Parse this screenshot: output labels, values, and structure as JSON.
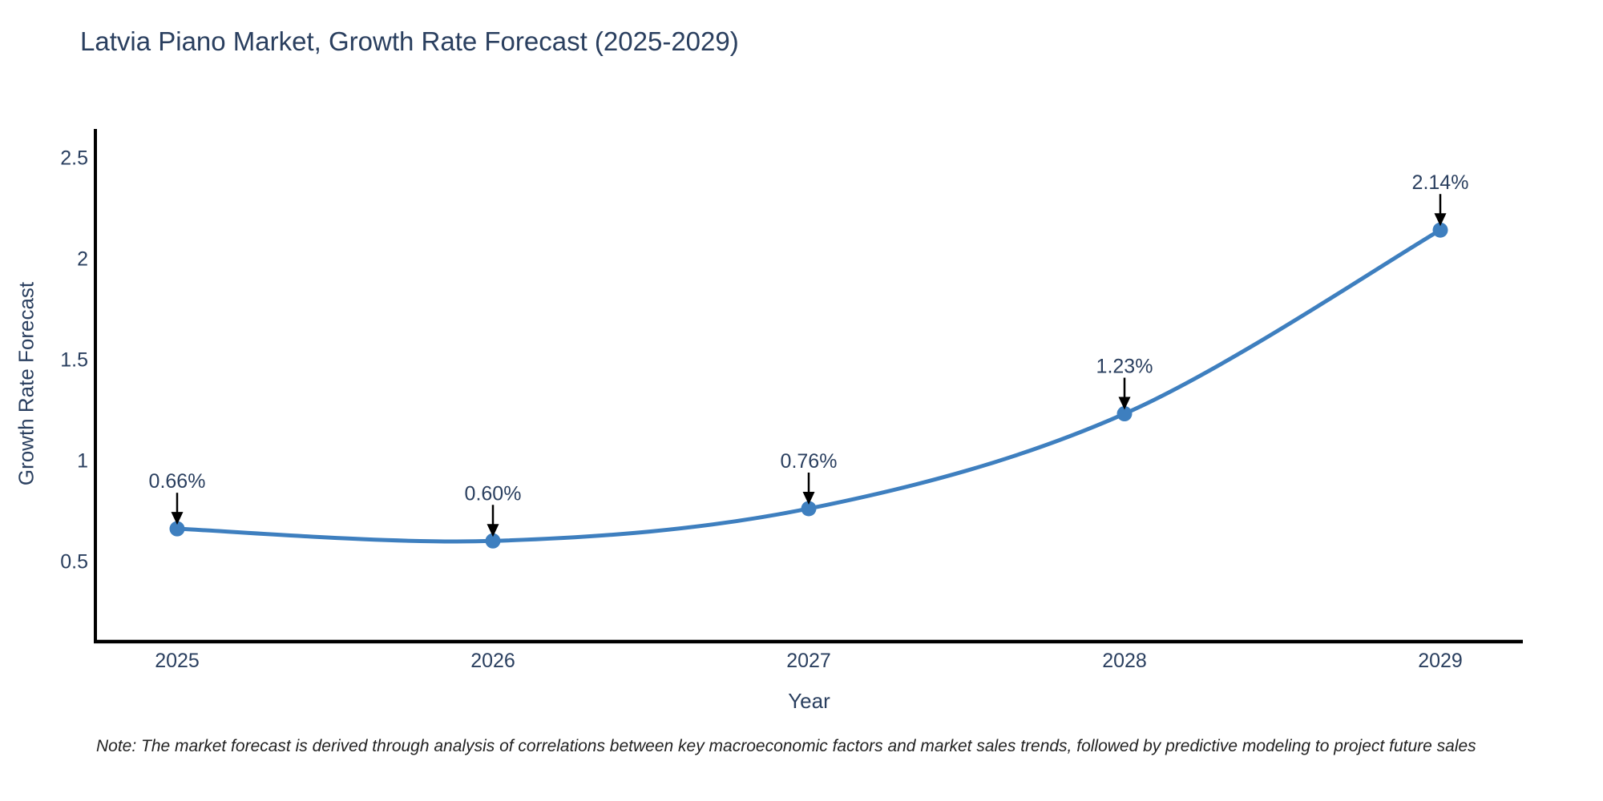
{
  "page": {
    "note": "Note: The market forecast is derived through analysis of correlations between key macroeconomic factors and market sales trends, followed by predictive modeling to project future sales"
  },
  "chart_data": {
    "type": "line",
    "title": "Latvia Piano Market, Growth Rate Forecast (2025-2029)",
    "xlabel": "Year",
    "ylabel": "Growth Rate Forecast",
    "categories": [
      "2025",
      "2026",
      "2027",
      "2028",
      "2029"
    ],
    "series": [
      {
        "name": "Growth Rate Forecast",
        "values": [
          0.66,
          0.6,
          0.76,
          1.23,
          2.14
        ]
      }
    ],
    "point_labels": [
      "0.66%",
      "0.60%",
      "0.76%",
      "1.23%",
      "2.14%"
    ],
    "ytick_labels": [
      "0.5",
      "1",
      "1.5",
      "2",
      "2.5"
    ],
    "ytick_values": [
      0.5,
      1,
      1.5,
      2,
      2.5
    ],
    "ylim": [
      0.1,
      2.64
    ],
    "line_shape": "spline",
    "marker": "circle",
    "annotations": "black-arrow-down-to-each-point",
    "grid": false,
    "legend": "none",
    "colors": {
      "line": "#3e7fbf",
      "marker": "#3e7fbf",
      "arrow": "#000000",
      "axis": "#000000",
      "text": "#2a3f5f",
      "note": "#222222",
      "background": "#ffffff"
    }
  }
}
